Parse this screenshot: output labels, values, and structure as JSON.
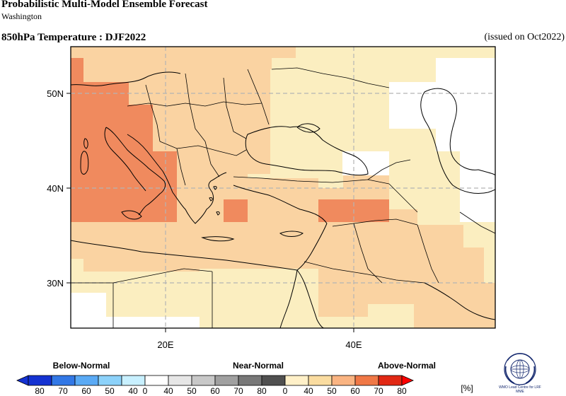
{
  "header": {
    "title": "Probabilistic Multi-Model Ensemble Forecast",
    "subtitle": "Washington",
    "variable": "850hPa Temperature : DJF2022",
    "issued": "(issued on Oct2022)"
  },
  "map": {
    "lat_labels": [
      "50N",
      "40N",
      "30N"
    ],
    "lon_labels": [
      "20E",
      "40E"
    ]
  },
  "legend": {
    "categories": [
      "Below-Normal",
      "Near-Normal",
      "Above-Normal"
    ],
    "unit": "[%]",
    "below_ticks": [
      "80",
      "70",
      "60",
      "50",
      "40"
    ],
    "near_ticks": [
      "0",
      "40",
      "50",
      "60",
      "70",
      "80"
    ],
    "above_ticks": [
      "0",
      "40",
      "50",
      "60",
      "70",
      "80"
    ],
    "below_colors": [
      "#1432d2",
      "#3278e6",
      "#5aaaf5",
      "#8cd2fa",
      "#c8f0ff"
    ],
    "near_colors": [
      "#ffffff",
      "#e6e6e6",
      "#c8c8c8",
      "#a0a0a0",
      "#787878",
      "#505050"
    ],
    "above_colors": [
      "#fff0c8",
      "#fadca0",
      "#fab482",
      "#f07846",
      "#e12814",
      "#ff0000"
    ]
  },
  "logo": {
    "text": "WMO Lead Centre for LRF MME"
  }
}
